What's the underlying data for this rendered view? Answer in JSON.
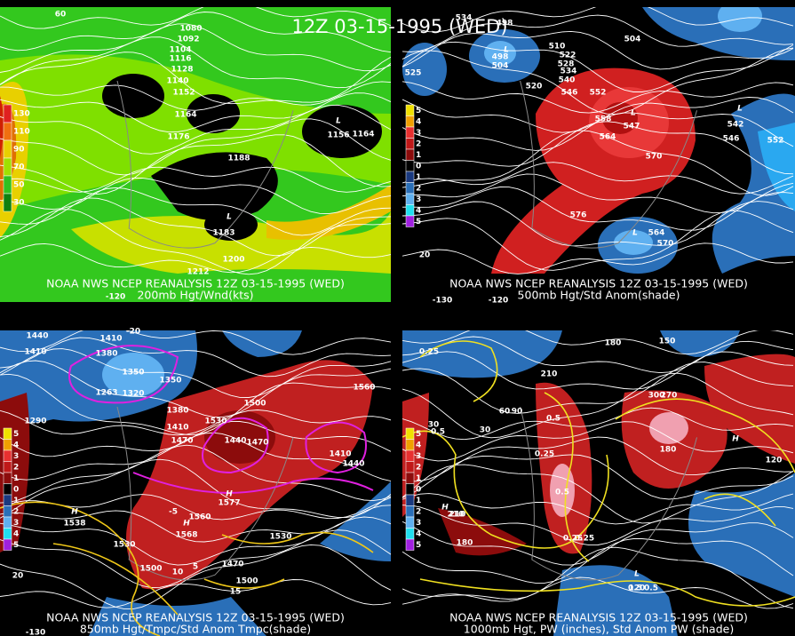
{
  "title": "12Z 03-15-1995 (WED)",
  "panels": [
    {
      "header": "NOAA NWS NCEP REANALYSIS 12Z 03-15-1995 (WED)",
      "subtitle": "200mb Hgt/Wnd(kts)",
      "legend": [
        "130",
        "110",
        "90",
        "70",
        "50",
        "30"
      ],
      "labels": [
        "1080",
        "1092",
        "1104",
        "1116",
        "1128",
        "1140",
        "1152",
        "1164",
        "1176",
        "1188",
        "1164",
        "L",
        "1156",
        "L",
        "1183",
        "1200",
        "1212",
        "60",
        "-120"
      ]
    },
    {
      "header": "NOAA NWS NCEP REANALYSIS 12Z 03-15-1995 (WED)",
      "subtitle": "500mb Hgt/Std Anom(shade)",
      "legend": [
        "5",
        "4",
        "3",
        "2",
        "1",
        "0",
        "1",
        "2",
        "3",
        "4",
        "5"
      ],
      "labels": [
        "534",
        "498",
        "504",
        "L",
        "525",
        "510",
        "522",
        "528",
        "534",
        "540",
        "546",
        "552",
        "504",
        "498",
        "558",
        "564",
        "L",
        "547",
        "570",
        "576",
        "L",
        "542",
        "546",
        "552",
        "L",
        "564",
        "570",
        "520",
        "20",
        "-130",
        "-120"
      ]
    },
    {
      "header": "NOAA NWS NCEP REANALYSIS 12Z 03-15-1995 (WED)",
      "subtitle": "850mb Hgt/Tmpc/Std Anom Tmpc(shade)",
      "legend": [
        "5",
        "4",
        "3",
        "2",
        "1",
        "0",
        "1",
        "2",
        "3",
        "4",
        "5"
      ],
      "labels": [
        "1440",
        "1410",
        "1410",
        "1380",
        "1350",
        "1320",
        "1290",
        "1263",
        "1350",
        "1380",
        "1410",
        "1470",
        "1530",
        "1500",
        "1440",
        "1470",
        "1560",
        "1410",
        "1440",
        "1560",
        "1530",
        "1530",
        "1500",
        "1470",
        "1500",
        "H",
        "1577",
        "H",
        "1538",
        "H",
        "1568",
        "-20",
        "-5",
        "5",
        "10",
        "15",
        "20",
        "-130"
      ]
    },
    {
      "header": "NOAA NWS NCEP REANALYSIS 12Z 03-15-1995 (WED)",
      "subtitle": "1000mb Hgt, PW (inches), Std Anom PW (shade)",
      "legend": [
        "5",
        "4",
        "3",
        "2",
        "1",
        "0",
        "1",
        "2",
        "3",
        "4",
        "5"
      ],
      "labels": [
        "180",
        "150",
        "210",
        "90",
        "60",
        "30",
        "0.25",
        "0.5",
        "0.5",
        "0.25",
        "0.5",
        "0.25",
        "120",
        "H",
        "180",
        "300",
        "270",
        "210",
        "180",
        "0.5",
        "0.5",
        "0.25",
        "H",
        "210",
        "L",
        "120",
        "30"
      ]
    }
  ]
}
